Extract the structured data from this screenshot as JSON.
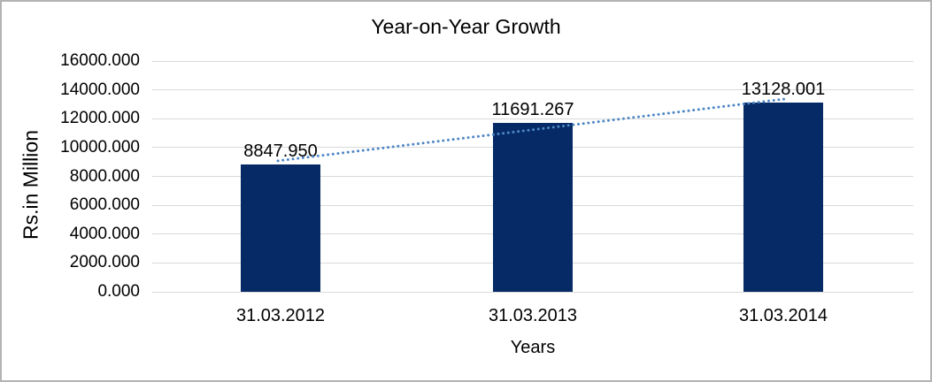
{
  "window": {
    "background_color": "#ffffff",
    "border_color": "#b3b3b3"
  },
  "chart_data": {
    "type": "bar",
    "title": "Year-on-Year Growth",
    "xlabel": "Years",
    "ylabel": "Rs.in Million",
    "categories": [
      "31.03.2012",
      "31.03.2013",
      "31.03.2014"
    ],
    "values": [
      8847.95,
      11691.267,
      13128.001
    ],
    "data_labels": [
      "8847.950",
      "11691.267",
      "13128.001"
    ],
    "y_ticks": [
      "0.000",
      "2000.000",
      "4000.000",
      "6000.000",
      "8000.000",
      "10000.000",
      "12000.000",
      "14000.000",
      "16000.000"
    ],
    "ylim": [
      0,
      16000
    ],
    "grid": "horizontal",
    "legend": "none",
    "bar_color": "#062a66",
    "gridline_color": "#d9d9d9",
    "label_color": "#000000",
    "trendline": {
      "type": "linear",
      "style": "dotted",
      "color": "#4e87c5"
    }
  }
}
